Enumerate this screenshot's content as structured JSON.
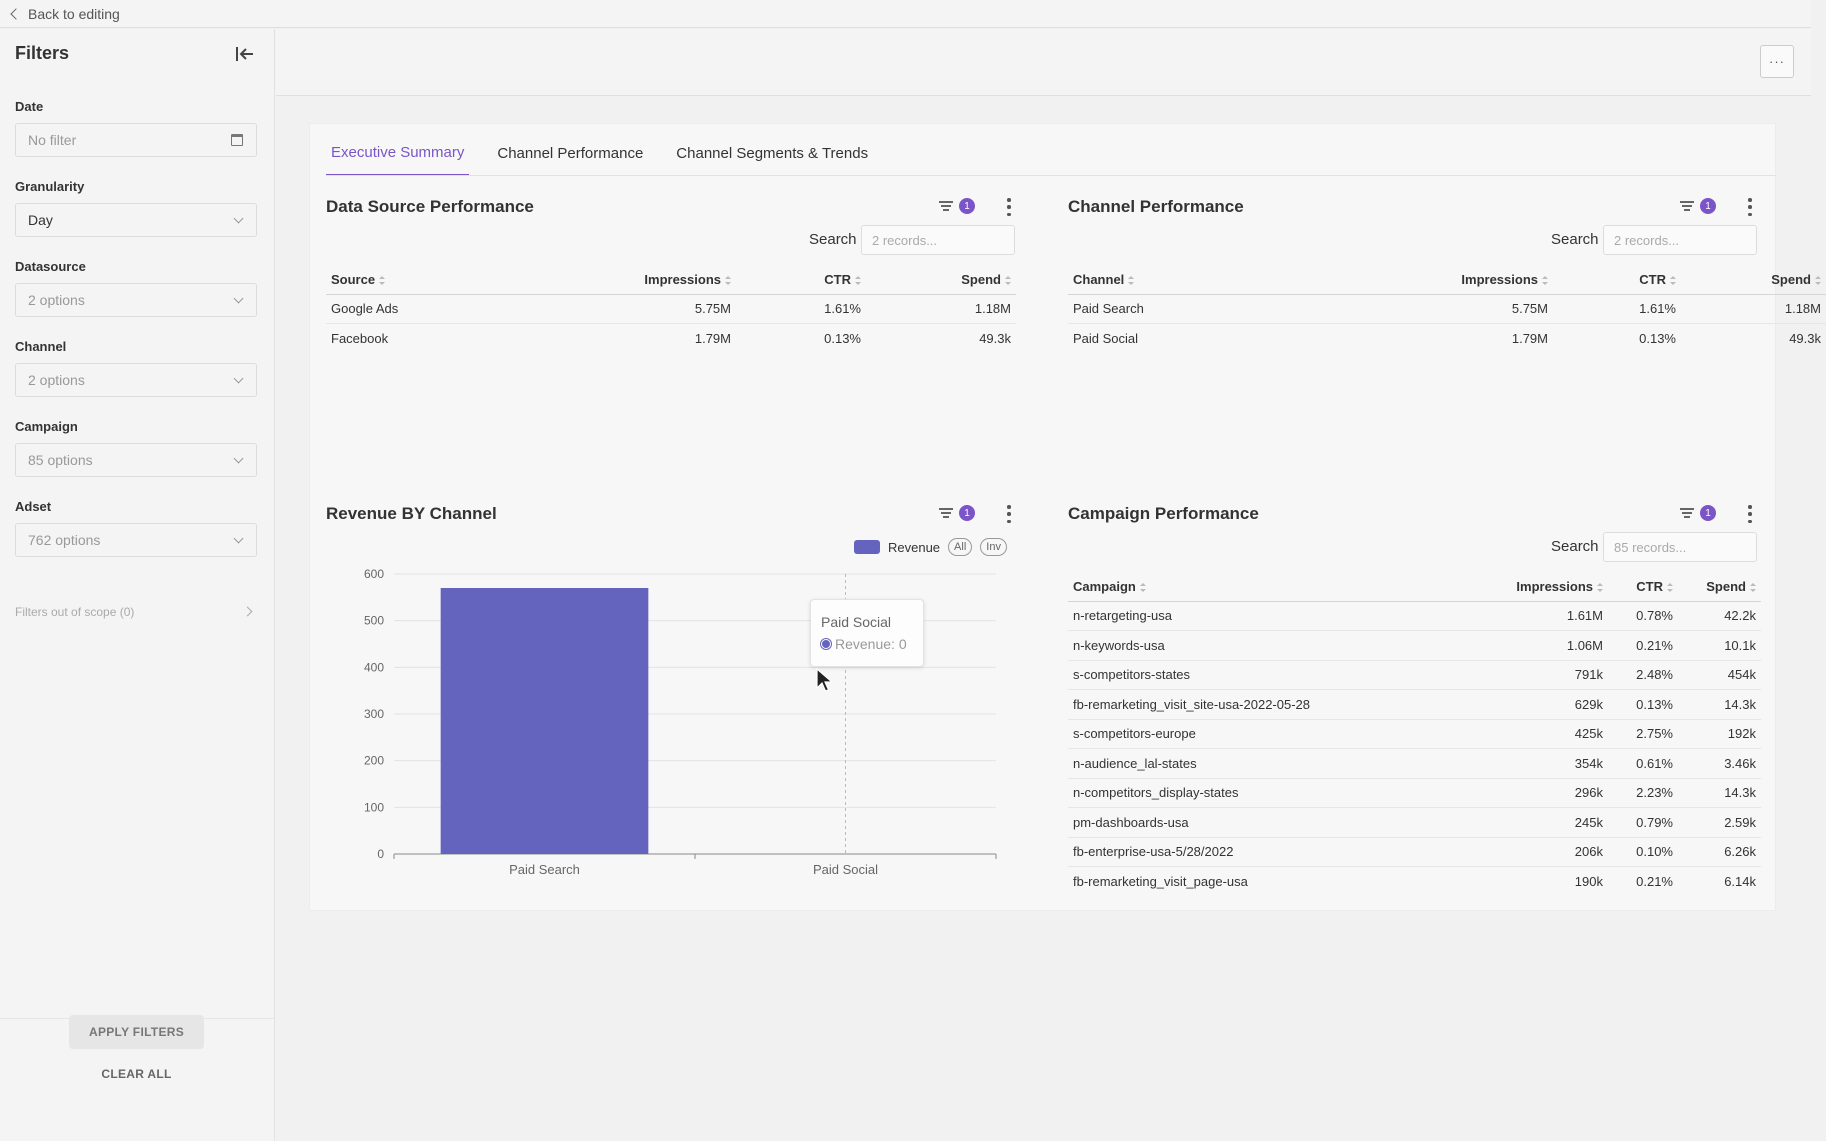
{
  "topbar": {
    "back_label": "Back to editing"
  },
  "sidebar": {
    "title": "Filters",
    "filters": [
      {
        "label": "Date",
        "value": "No filter"
      },
      {
        "label": "Granularity",
        "value": "Day"
      },
      {
        "label": "Datasource",
        "value": "2 options"
      },
      {
        "label": "Channel",
        "value": "2 options"
      },
      {
        "label": "Campaign",
        "value": "85 options"
      },
      {
        "label": "Adset",
        "value": "762 options"
      }
    ],
    "out_of_scope": "Filters out of scope (0)",
    "apply_label": "APPLY FILTERS",
    "clear_label": "CLEAR ALL"
  },
  "header": {
    "more_label": "···"
  },
  "tabs": [
    {
      "label": "Executive Summary",
      "active": true
    },
    {
      "label": "Channel Performance",
      "active": false
    },
    {
      "label": "Channel Segments & Trends",
      "active": false
    }
  ],
  "accent_color": "#7b55c8",
  "widgets": {
    "data_source": {
      "title": "Data Source Performance",
      "badge": "1",
      "search_label": "Search",
      "search_placeholder": "2 records...",
      "columns": [
        "Source",
        "Impressions",
        "CTR",
        "Spend"
      ],
      "rows": [
        [
          "Google Ads",
          "5.75M",
          "1.61%",
          "1.18M"
        ],
        [
          "Facebook",
          "1.79M",
          "0.13%",
          "49.3k"
        ]
      ]
    },
    "channel": {
      "title": "Channel Performance",
      "badge": "1",
      "search_label": "Search",
      "search_placeholder": "2 records...",
      "columns": [
        "Channel",
        "Impressions",
        "CTR",
        "Spend"
      ],
      "rows": [
        [
          "Paid Search",
          "5.75M",
          "1.61%",
          "1.18M"
        ],
        [
          "Paid Social",
          "1.79M",
          "0.13%",
          "49.3k"
        ]
      ]
    },
    "revenue": {
      "title": "Revenue BY Channel",
      "badge": "1",
      "legend_label": "Revenue",
      "pill_all": "All",
      "pill_inv": "Inv",
      "tooltip": {
        "title": "Paid Social",
        "line": "Revenue: 0"
      }
    },
    "campaign": {
      "title": "Campaign Performance",
      "badge": "1",
      "search_label": "Search",
      "search_placeholder": "85 records...",
      "columns": [
        "Campaign",
        "Impressions",
        "CTR",
        "Spend"
      ],
      "rows": [
        [
          "n-retargeting-usa",
          "1.61M",
          "0.78%",
          "42.2k"
        ],
        [
          "n-keywords-usa",
          "1.06M",
          "0.21%",
          "10.1k"
        ],
        [
          "s-competitors-states",
          "791k",
          "2.48%",
          "454k"
        ],
        [
          "fb-remarketing_visit_site-usa-2022-05-28",
          "629k",
          "0.13%",
          "14.3k"
        ],
        [
          "s-competitors-europe",
          "425k",
          "2.75%",
          "192k"
        ],
        [
          "n-audience_lal-states",
          "354k",
          "0.61%",
          "3.46k"
        ],
        [
          "n-competitors_display-states",
          "296k",
          "2.23%",
          "14.3k"
        ],
        [
          "pm-dashboards-usa",
          "245k",
          "0.79%",
          "2.59k"
        ],
        [
          "fb-enterprise-usa-5/28/2022",
          "206k",
          "0.10%",
          "6.26k"
        ],
        [
          "fb-remarketing_visit_page-usa",
          "190k",
          "0.21%",
          "6.14k"
        ]
      ]
    }
  },
  "chart_data": {
    "type": "bar",
    "categories": [
      "Paid Search",
      "Paid Social"
    ],
    "series": [
      {
        "name": "Revenue",
        "values": [
          570,
          0
        ]
      }
    ],
    "ylim": [
      0,
      600
    ],
    "yticks": [
      0,
      100,
      200,
      300,
      400,
      500,
      600
    ],
    "grid": true,
    "bar_color": "#6464bf"
  }
}
